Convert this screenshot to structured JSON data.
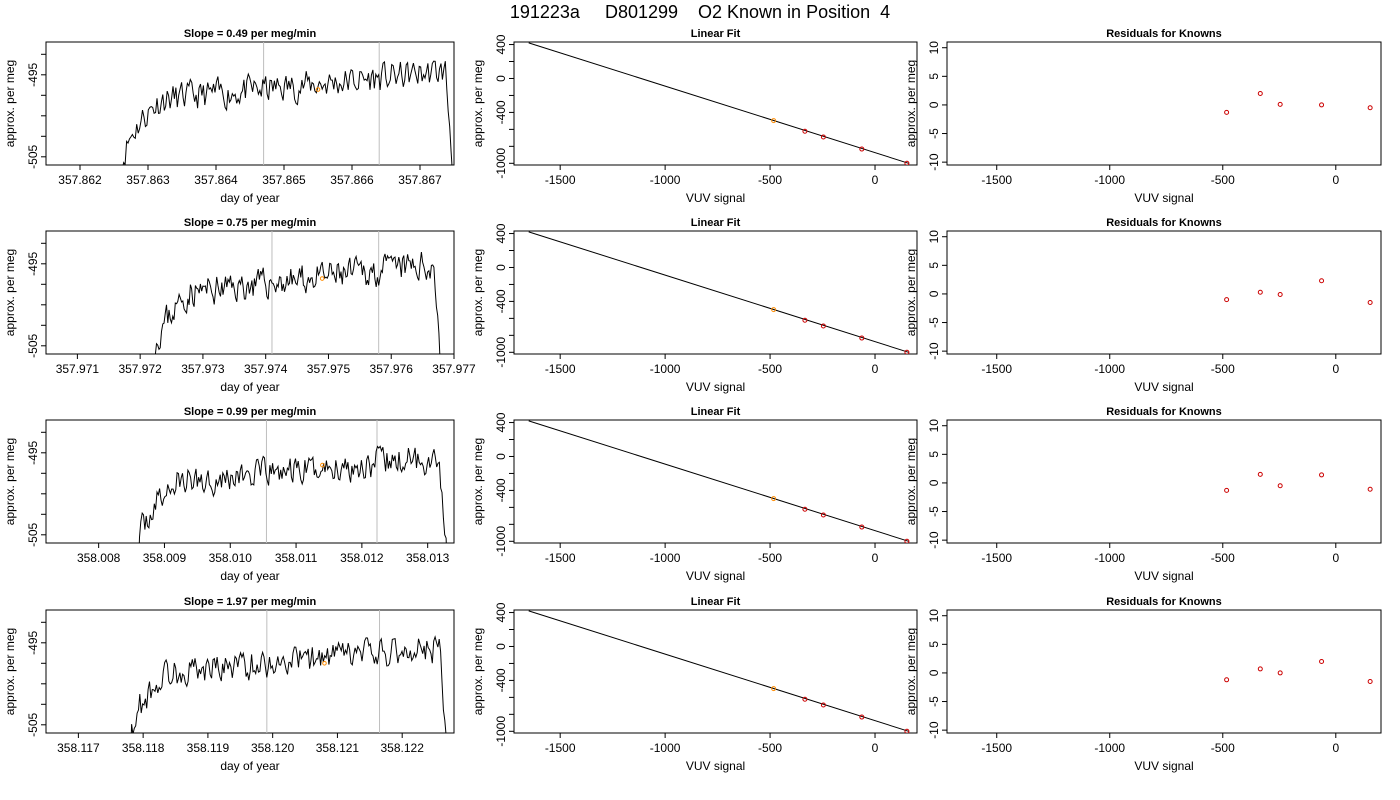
{
  "page_title": "191223a     D801299    O2 Known in Position  4",
  "colors": {
    "line": "#000000",
    "marker": "#ff8c00",
    "resid": "#cc0000",
    "vline": "#bebebe"
  },
  "chart_data": [
    {
      "type": "line",
      "title": "Slope =  0.49  per meg/min",
      "xlabel": "day of year",
      "ylabel": "approx. per meg",
      "xlim": [
        357.8615,
        357.8675
      ],
      "ylim": [
        -506,
        -491
      ],
      "xticks": [
        "357.862",
        "357.863",
        "357.864",
        "357.865",
        "357.866",
        "357.867"
      ],
      "yticks": [
        -505,
        -495
      ],
      "ytick_labels": [
        "-505",
        "-495"
      ],
      "vlines": [
        357.8647,
        357.8664
      ],
      "marker": {
        "x": 357.8655,
        "y": -496.8
      },
      "seed": 11,
      "trace": {
        "x_start": 357.8626,
        "x_end": 357.8675,
        "rise_to": 357.8632,
        "plateau_start": -498.5,
        "plateau_end": -494.5
      }
    },
    {
      "type": "line",
      "title": "Linear Fit",
      "xlabel": "VUV signal",
      "ylabel": "approx. per meg",
      "xlim": [
        -1720,
        200
      ],
      "ylim": [
        -1020,
        430
      ],
      "xticks": [
        -1500,
        -1000,
        -500,
        0
      ],
      "xtick_labels": [
        "-1500",
        "-1000",
        "-500",
        "0"
      ],
      "yticks": [
        400,
        0,
        -400,
        -1000
      ],
      "ytick_labels": [
        "400",
        "0",
        "-400",
        "-1000"
      ],
      "line": [
        [
          -1650,
          420
        ],
        [
          160,
          -1000
        ]
      ],
      "points": [
        {
          "x": -483,
          "y": -497
        },
        {
          "x": -334,
          "y": -622
        },
        {
          "x": -246,
          "y": -690
        },
        {
          "x": -63,
          "y": -832
        },
        {
          "x": 152,
          "y": -999
        }
      ],
      "highlight_index": 0
    },
    {
      "type": "scatter",
      "title": "Residuals for Knowns",
      "xlabel": "VUV signal",
      "ylabel": "approx. per meg",
      "xlim": [
        -1720,
        200
      ],
      "ylim": [
        -10.5,
        11
      ],
      "xticks": [
        -1500,
        -1000,
        -500,
        0
      ],
      "xtick_labels": [
        "-1500",
        "-1000",
        "-500",
        "0"
      ],
      "yticks": [
        10,
        5,
        0,
        -5,
        -10
      ],
      "ytick_labels": [
        "10",
        "5",
        "0",
        "-5",
        "-10"
      ],
      "points": [
        {
          "x": -483,
          "y": -1.3
        },
        {
          "x": -334,
          "y": 2.0
        },
        {
          "x": -246,
          "y": 0.1
        },
        {
          "x": -63,
          "y": 0.0
        },
        {
          "x": 152,
          "y": -0.5
        }
      ]
    },
    {
      "type": "line",
      "title": "Slope =  0.75  per meg/min",
      "xlabel": "day of year",
      "ylabel": "approx. per meg",
      "xlim": [
        357.9705,
        357.977
      ],
      "ylim": [
        -506,
        -491
      ],
      "xticks": [
        "357.971",
        "357.972",
        "357.973",
        "357.974",
        "357.975",
        "357.976",
        "357.977"
      ],
      "yticks": [
        -505,
        -495
      ],
      "ytick_labels": [
        "-505",
        "-495"
      ],
      "vlines": [
        357.9741,
        357.9758
      ],
      "marker": {
        "x": 357.9749,
        "y": -496.8
      },
      "seed": 23,
      "trace": {
        "x_start": 357.9722,
        "x_end": 357.9768,
        "rise_to": 357.9728,
        "plateau_start": -499,
        "plateau_end": -495
      }
    },
    {
      "type": "line",
      "title": "Linear Fit",
      "xlabel": "VUV signal",
      "ylabel": "approx. per meg",
      "xlim": [
        -1720,
        200
      ],
      "ylim": [
        -1020,
        430
      ],
      "xticks": [
        -1500,
        -1000,
        -500,
        0
      ],
      "xtick_labels": [
        "-1500",
        "-1000",
        "-500",
        "0"
      ],
      "yticks": [
        400,
        0,
        -400,
        -1000
      ],
      "ytick_labels": [
        "400",
        "0",
        "-400",
        "-1000"
      ],
      "line": [
        [
          -1650,
          420
        ],
        [
          160,
          -1000
        ]
      ],
      "points": [
        {
          "x": -483,
          "y": -497
        },
        {
          "x": -334,
          "y": -622
        },
        {
          "x": -246,
          "y": -690
        },
        {
          "x": -63,
          "y": -832
        },
        {
          "x": 152,
          "y": -999
        }
      ],
      "highlight_index": 0
    },
    {
      "type": "scatter",
      "title": "Residuals for Knowns",
      "xlabel": "VUV signal",
      "ylabel": "approx. per meg",
      "xlim": [
        -1720,
        200
      ],
      "ylim": [
        -10.5,
        11
      ],
      "xticks": [
        -1500,
        -1000,
        -500,
        0
      ],
      "xtick_labels": [
        "-1500",
        "-1000",
        "-500",
        "0"
      ],
      "yticks": [
        10,
        5,
        0,
        -5,
        -10
      ],
      "ytick_labels": [
        "10",
        "5",
        "0",
        "-5",
        "-10"
      ],
      "points": [
        {
          "x": -483,
          "y": -1.0
        },
        {
          "x": -334,
          "y": 0.3
        },
        {
          "x": -246,
          "y": -0.1
        },
        {
          "x": -63,
          "y": 2.3
        },
        {
          "x": 152,
          "y": -1.5
        }
      ]
    },
    {
      "type": "line",
      "title": "Slope =  0.99  per meg/min",
      "xlabel": "day of year",
      "ylabel": "approx. per meg",
      "xlim": [
        358.0072,
        358.0134
      ],
      "ylim": [
        -506,
        -491
      ],
      "xticks": [
        "358.008",
        "358.009",
        "358.010",
        "358.011",
        "358.012",
        "358.013"
      ],
      "yticks": [
        -505,
        -495
      ],
      "ytick_labels": [
        "-505",
        "-495"
      ],
      "vlines": [
        358.01055,
        358.01223
      ],
      "marker": {
        "x": 358.0114,
        "y": -496.5
      },
      "seed": 37,
      "trace": {
        "x_start": 358.0086,
        "x_end": 358.0133,
        "rise_to": 358.0092,
        "plateau_start": -499,
        "plateau_end": -495.5
      }
    },
    {
      "type": "line",
      "title": "Linear Fit",
      "xlabel": "VUV signal",
      "ylabel": "approx. per meg",
      "xlim": [
        -1720,
        200
      ],
      "ylim": [
        -1020,
        430
      ],
      "xticks": [
        -1500,
        -1000,
        -500,
        0
      ],
      "xtick_labels": [
        "-1500",
        "-1000",
        "-500",
        "0"
      ],
      "yticks": [
        400,
        0,
        -400,
        -1000
      ],
      "ytick_labels": [
        "400",
        "0",
        "-400",
        "-1000"
      ],
      "line": [
        [
          -1650,
          420
        ],
        [
          160,
          -1000
        ]
      ],
      "points": [
        {
          "x": -483,
          "y": -497
        },
        {
          "x": -334,
          "y": -622
        },
        {
          "x": -246,
          "y": -690
        },
        {
          "x": -63,
          "y": -832
        },
        {
          "x": 152,
          "y": -999
        }
      ],
      "highlight_index": 0
    },
    {
      "type": "scatter",
      "title": "Residuals for Knowns",
      "xlabel": "VUV signal",
      "ylabel": "approx. per meg",
      "xlim": [
        -1720,
        200
      ],
      "ylim": [
        -10.5,
        11
      ],
      "xticks": [
        -1500,
        -1000,
        -500,
        0
      ],
      "xtick_labels": [
        "-1500",
        "-1000",
        "-500",
        "0"
      ],
      "yticks": [
        10,
        5,
        0,
        -5,
        -10
      ],
      "ytick_labels": [
        "10",
        "5",
        "0",
        "-5",
        "-10"
      ],
      "points": [
        {
          "x": -483,
          "y": -1.3
        },
        {
          "x": -334,
          "y": 1.5
        },
        {
          "x": -246,
          "y": -0.5
        },
        {
          "x": -63,
          "y": 1.4
        },
        {
          "x": 152,
          "y": -1.1
        }
      ]
    },
    {
      "type": "line",
      "title": "Slope =  1.97  per meg/min",
      "xlabel": "day of year",
      "ylabel": "approx. per meg",
      "xlim": [
        358.1165,
        358.1228
      ],
      "ylim": [
        -506,
        -491
      ],
      "xticks": [
        "358.117",
        "358.118",
        "358.119",
        "358.120",
        "358.121",
        "358.122"
      ],
      "yticks": [
        -505,
        -495
      ],
      "ytick_labels": [
        "-505",
        "-495"
      ],
      "vlines": [
        358.11991,
        358.12165
      ],
      "marker": {
        "x": 358.1208,
        "y": -497.5
      },
      "seed": 53,
      "trace": {
        "x_start": 358.1178,
        "x_end": 358.1227,
        "rise_to": 358.1184,
        "plateau_start": -499,
        "plateau_end": -495.5
      }
    },
    {
      "type": "line",
      "title": "Linear Fit",
      "xlabel": "VUV signal",
      "ylabel": "approx. per meg",
      "xlim": [
        -1720,
        200
      ],
      "ylim": [
        -1020,
        430
      ],
      "xticks": [
        -1500,
        -1000,
        -500,
        0
      ],
      "xtick_labels": [
        "-1500",
        "-1000",
        "-500",
        "0"
      ],
      "yticks": [
        400,
        0,
        -400,
        -1000
      ],
      "ytick_labels": [
        "400",
        "0",
        "-400",
        "-1000"
      ],
      "line": [
        [
          -1650,
          420
        ],
        [
          160,
          -1000
        ]
      ],
      "points": [
        {
          "x": -483,
          "y": -497
        },
        {
          "x": -334,
          "y": -622
        },
        {
          "x": -246,
          "y": -690
        },
        {
          "x": -63,
          "y": -832
        },
        {
          "x": 152,
          "y": -999
        }
      ],
      "highlight_index": 0
    },
    {
      "type": "scatter",
      "title": "Residuals for Knowns",
      "xlabel": "VUV signal",
      "ylabel": "approx. per meg",
      "xlim": [
        -1720,
        200
      ],
      "ylim": [
        -10.5,
        11
      ],
      "xticks": [
        -1500,
        -1000,
        -500,
        0
      ],
      "xtick_labels": [
        "-1500",
        "-1000",
        "-500",
        "0"
      ],
      "yticks": [
        10,
        5,
        0,
        -5,
        -10
      ],
      "ytick_labels": [
        "10",
        "5",
        "0",
        "-5",
        "-10"
      ],
      "points": [
        {
          "x": -483,
          "y": -1.2
        },
        {
          "x": -334,
          "y": 0.7
        },
        {
          "x": -246,
          "y": 0.0
        },
        {
          "x": -63,
          "y": 2.0
        },
        {
          "x": 152,
          "y": -1.5
        }
      ]
    }
  ]
}
